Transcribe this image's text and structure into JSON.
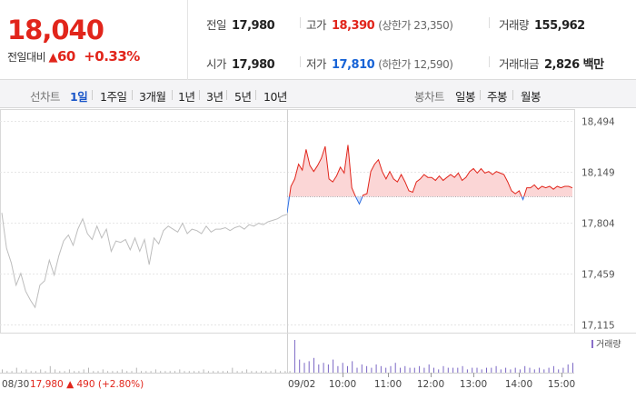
{
  "header": {
    "price": "18,040",
    "change_label": "전일대비",
    "change_arrow": "▲",
    "change_value": "60",
    "change_pct": "+0.33%",
    "stats": [
      {
        "label": "전일",
        "value": "17,980",
        "sub": ""
      },
      {
        "label": "고가",
        "value": "18,390",
        "sub": "(상한가 23,350)"
      },
      {
        "label": "거래량",
        "value": "155,962",
        "sub": ""
      },
      {
        "label": "시가",
        "value": "17,980",
        "sub": ""
      },
      {
        "label": "저가",
        "value": "17,810",
        "sub": "(하한가 12,590)"
      },
      {
        "label": "거래대금",
        "value": "2,826 백만",
        "sub": ""
      }
    ]
  },
  "tabs": {
    "line_label": "선차트",
    "line_items": [
      "1일",
      "1주일",
      "3개월",
      "1년",
      "3년",
      "5년",
      "10년"
    ],
    "line_active": "1일",
    "candle_label": "봉차트",
    "candle_items": [
      "일봉",
      "주봉",
      "월봉"
    ]
  },
  "chart_data": {
    "type": "line",
    "ylim": [
      17059,
      18573
    ],
    "y_ticks": [
      18494,
      18149,
      17804,
      17459,
      17115
    ],
    "y_tick_labels": [
      "18,494",
      "18,149",
      "17,804",
      "17,459",
      "17,115"
    ],
    "prev_close": 17980,
    "previous_session": {
      "date": "08/30",
      "price": [
        17870,
        17630,
        17530,
        17380,
        17460,
        17340,
        17280,
        17230,
        17380,
        17410,
        17550,
        17450,
        17580,
        17680,
        17720,
        17650,
        17760,
        17830,
        17730,
        17690,
        17780,
        17700,
        17760,
        17610,
        17680,
        17670,
        17690,
        17620,
        17700,
        17610,
        17690,
        17520,
        17700,
        17660,
        17750,
        17780,
        17760,
        17740,
        17800,
        17730,
        17760,
        17750,
        17730,
        17780,
        17740,
        17760,
        17760,
        17770,
        17750,
        17770,
        17780,
        17760,
        17790,
        17780,
        17800,
        17790,
        17810,
        17820,
        17830,
        17850,
        17860
      ]
    },
    "current_session": {
      "date": "09/02",
      "x_ticks": [
        "10:00",
        "11:00",
        "12:00",
        "13:00",
        "14:00",
        "15:00"
      ],
      "price": [
        17870,
        18050,
        18100,
        18200,
        18160,
        18300,
        18190,
        18150,
        18190,
        18240,
        18320,
        18100,
        18080,
        18120,
        18180,
        18140,
        18330,
        18040,
        17980,
        17930,
        17990,
        18000,
        18150,
        18200,
        18230,
        18150,
        18100,
        18150,
        18100,
        18080,
        18130,
        18080,
        18020,
        18010,
        18080,
        18100,
        18130,
        18110,
        18110,
        18090,
        18120,
        18090,
        18110,
        18130,
        18110,
        18140,
        18090,
        18110,
        18150,
        18170,
        18140,
        18170,
        18140,
        18150,
        18130,
        18150,
        18140,
        18130,
        18080,
        18020,
        18000,
        18020,
        17960,
        18040,
        18040,
        18060,
        18030,
        18050,
        18040,
        18050,
        18030,
        18050,
        18040,
        18050,
        18050,
        18040
      ]
    },
    "volume_label": "거래량",
    "volume": [
      2,
      1,
      1,
      3,
      1,
      2,
      1,
      1,
      2,
      1,
      4,
      2,
      1,
      1,
      2,
      1,
      1,
      2,
      3,
      1,
      1,
      2,
      1,
      1,
      1,
      2,
      1,
      1,
      3,
      1,
      1,
      1,
      2,
      1,
      1,
      1,
      1,
      2,
      1,
      1,
      1,
      1,
      2,
      1,
      1,
      1,
      1,
      1,
      3,
      1,
      1,
      2,
      1,
      1,
      1,
      1,
      1,
      2,
      1,
      1,
      1,
      20,
      8,
      6,
      7,
      9,
      5,
      6,
      5,
      8,
      4,
      6,
      4,
      7,
      3,
      5,
      4,
      3,
      5,
      4,
      3,
      4,
      6,
      3,
      4,
      3,
      3,
      4,
      3,
      5,
      3,
      2,
      4,
      3,
      3,
      3,
      4,
      2,
      3,
      3,
      2,
      3,
      3,
      4,
      2,
      3,
      2,
      3,
      2,
      4,
      3,
      2,
      3,
      2,
      3,
      4,
      2,
      3,
      5,
      6
    ]
  },
  "footer": {
    "prev_date": "08/30",
    "prev_close": "17,980",
    "prev_arrow": "▲",
    "prev_change": "490",
    "prev_pct": "(+2.80%)",
    "current_date": "09/02"
  }
}
